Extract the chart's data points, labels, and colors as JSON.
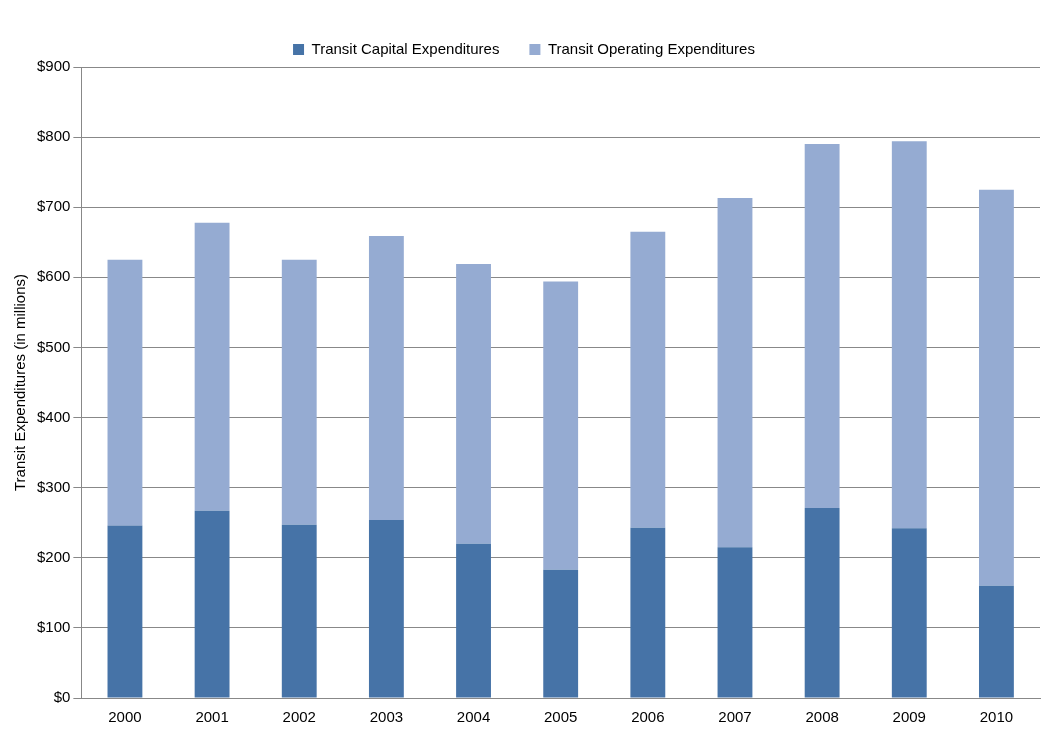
{
  "chart_data": {
    "type": "bar",
    "ylabel": "Transit Expenditures (in millions)",
    "categories": [
      "2000",
      "2001",
      "2002",
      "2003",
      "2004",
      "2005",
      "2006",
      "2007",
      "2008",
      "2009",
      "2010"
    ],
    "stacked": true,
    "series": [
      {
        "name": "Transit Capital Expenditures",
        "color": "#4673a7",
        "values": [
          246,
          267,
          247,
          254,
          220,
          183,
          243,
          215,
          271,
          242,
          160
        ]
      },
      {
        "name": "Transit Operating Expenditures",
        "color": "#95abd2",
        "values": [
          379,
          411,
          378,
          405,
          399,
          411,
          422,
          498,
          519,
          552,
          565
        ]
      }
    ],
    "ylim": [
      0,
      900
    ],
    "yticks": [
      {
        "value": 0,
        "label": "$0"
      },
      {
        "value": 100,
        "label": "$100"
      },
      {
        "value": 200,
        "label": "$200"
      },
      {
        "value": 300,
        "label": "$300"
      },
      {
        "value": 400,
        "label": "$400"
      },
      {
        "value": 500,
        "label": "$500"
      },
      {
        "value": 600,
        "label": "$600"
      },
      {
        "value": 700,
        "label": "$700"
      },
      {
        "value": 800,
        "label": "$800"
      },
      {
        "value": 900,
        "label": "$900"
      }
    ],
    "grid": "y",
    "legend": "top"
  }
}
